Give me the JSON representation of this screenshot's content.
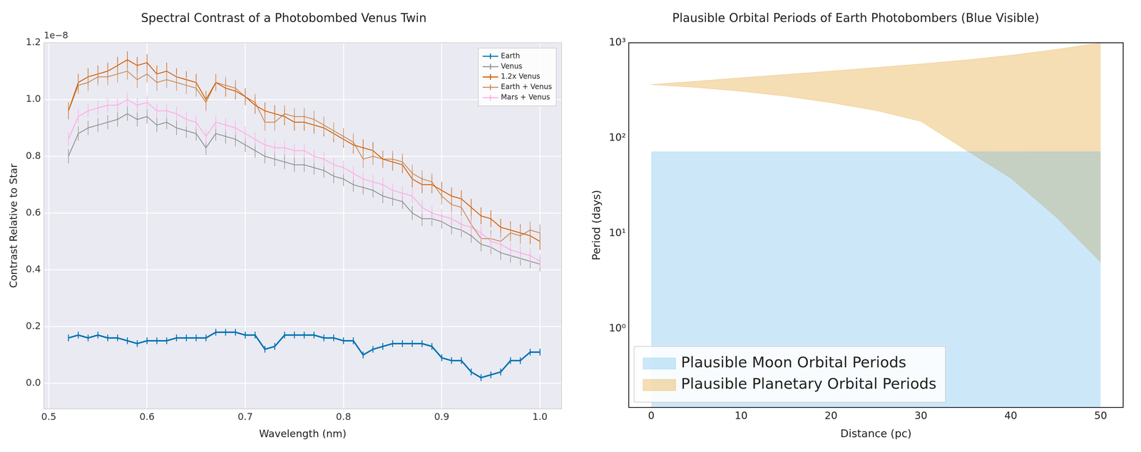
{
  "chart_data": [
    {
      "type": "line",
      "title": "Spectral Contrast of a Photobombed Venus Twin",
      "x_label": "Wavelength (nm)",
      "y_label": "Contrast Relative to Star",
      "annotation": "1e−8",
      "xlim": [
        0.495,
        1.022
      ],
      "xticks": [
        0.5,
        0.6,
        0.7,
        0.8,
        0.9,
        {
          "value": 1,
          "label": "1.0"
        }
      ],
      "ylim": [
        -0.09,
        1.2
      ],
      "yticks": [
        {
          "value": 0,
          "label": "0.0"
        },
        0.2,
        0.4,
        0.6,
        0.8,
        {
          "value": 1,
          "label": "1.0"
        },
        1.2
      ],
      "grid": true,
      "legend": "upper right",
      "x": [
        0.52,
        0.53,
        0.54,
        0.55,
        0.56,
        0.57,
        0.58,
        0.59,
        0.6,
        0.61,
        0.62,
        0.63,
        0.64,
        0.65,
        0.66,
        0.67,
        0.68,
        0.69,
        0.7,
        0.71,
        0.72,
        0.73,
        0.74,
        0.75,
        0.76,
        0.77,
        0.78,
        0.79,
        0.8,
        0.81,
        0.82,
        0.83,
        0.84,
        0.85,
        0.86,
        0.87,
        0.88,
        0.89,
        0.9,
        0.91,
        0.92,
        0.93,
        0.94,
        0.95,
        0.96,
        0.97,
        0.98,
        0.99,
        1.0
      ],
      "series": [
        {
          "name": "Earth",
          "color": "#0173b2",
          "error": 0.012,
          "values": [
            0.16,
            0.17,
            0.16,
            0.17,
            0.16,
            0.16,
            0.15,
            0.14,
            0.15,
            0.15,
            0.15,
            0.16,
            0.16,
            0.16,
            0.16,
            0.18,
            0.18,
            0.18,
            0.17,
            0.17,
            0.12,
            0.13,
            0.17,
            0.17,
            0.17,
            0.17,
            0.16,
            0.16,
            0.15,
            0.15,
            0.1,
            0.12,
            0.13,
            0.14,
            0.14,
            0.14,
            0.14,
            0.13,
            0.09,
            0.08,
            0.08,
            0.04,
            0.02,
            0.03,
            0.04,
            0.08,
            0.08,
            0.11,
            0.11
          ]
        },
        {
          "name": "Venus",
          "color": "#949494",
          "error": 0.025,
          "values": [
            0.8,
            0.88,
            0.9,
            0.91,
            0.92,
            0.93,
            0.95,
            0.93,
            0.94,
            0.91,
            0.92,
            0.9,
            0.89,
            0.88,
            0.83,
            0.88,
            0.87,
            0.86,
            0.84,
            0.82,
            0.8,
            0.79,
            0.78,
            0.77,
            0.77,
            0.76,
            0.75,
            0.73,
            0.72,
            0.7,
            0.69,
            0.68,
            0.66,
            0.65,
            0.64,
            0.6,
            0.58,
            0.58,
            0.57,
            0.55,
            0.54,
            0.52,
            0.49,
            0.48,
            0.46,
            0.45,
            0.44,
            0.43,
            0.42
          ]
        },
        {
          "name": "1.2x Venus",
          "color": "#d55e00",
          "error": 0.03,
          "values": [
            0.96,
            1.06,
            1.08,
            1.09,
            1.1,
            1.12,
            1.14,
            1.12,
            1.13,
            1.09,
            1.1,
            1.08,
            1.07,
            1.06,
            1.0,
            1.06,
            1.04,
            1.03,
            1.01,
            0.98,
            0.96,
            0.95,
            0.94,
            0.92,
            0.92,
            0.91,
            0.9,
            0.88,
            0.86,
            0.84,
            0.83,
            0.82,
            0.79,
            0.78,
            0.77,
            0.72,
            0.7,
            0.7,
            0.68,
            0.66,
            0.65,
            0.62,
            0.59,
            0.58,
            0.55,
            0.54,
            0.53,
            0.52,
            0.5
          ]
        },
        {
          "name": "Earth + Venus",
          "color": "#ca9161",
          "error": 0.03,
          "values": [
            0.96,
            1.05,
            1.06,
            1.08,
            1.08,
            1.09,
            1.1,
            1.07,
            1.09,
            1.06,
            1.07,
            1.06,
            1.05,
            1.04,
            0.99,
            1.06,
            1.05,
            1.04,
            1.01,
            0.99,
            0.92,
            0.92,
            0.95,
            0.94,
            0.94,
            0.93,
            0.91,
            0.89,
            0.87,
            0.85,
            0.79,
            0.8,
            0.79,
            0.79,
            0.78,
            0.74,
            0.72,
            0.71,
            0.66,
            0.63,
            0.62,
            0.56,
            0.51,
            0.51,
            0.5,
            0.53,
            0.52,
            0.54,
            0.53
          ]
        },
        {
          "name": "Mars + Venus",
          "color": "#fbafe4",
          "error": 0.025,
          "values": [
            0.86,
            0.94,
            0.96,
            0.97,
            0.98,
            0.98,
            1.0,
            0.98,
            0.99,
            0.96,
            0.96,
            0.95,
            0.93,
            0.92,
            0.87,
            0.92,
            0.91,
            0.9,
            0.88,
            0.86,
            0.84,
            0.83,
            0.83,
            0.82,
            0.82,
            0.8,
            0.79,
            0.77,
            0.76,
            0.74,
            0.72,
            0.71,
            0.7,
            0.68,
            0.67,
            0.66,
            0.62,
            0.6,
            0.59,
            0.58,
            0.56,
            0.55,
            0.53,
            0.5,
            0.49,
            0.47,
            0.46,
            0.45,
            0.43
          ]
        }
      ]
    },
    {
      "type": "area",
      "title": "Plausible Orbital Periods of Earth Photobombers (Blue Visible)",
      "x_label": "Distance (pc)",
      "y_label": "Period (days)",
      "log": "y",
      "grid": false,
      "legend": "lower left",
      "xlim": [
        -2.5,
        52.5
      ],
      "xticks": [
        0,
        10,
        20,
        30,
        40,
        50
      ],
      "ylim": [
        0.15,
        1000
      ],
      "yticks": [
        {
          "value": 1,
          "label": "10⁰"
        },
        {
          "value": 10,
          "label": "10¹"
        },
        {
          "value": 100,
          "label": "10²"
        },
        {
          "value": 1000,
          "label": "10³"
        }
      ],
      "series": [
        {
          "name": "Plausible Moon Orbital Periods",
          "color": "#56b4e9",
          "x": [
            0,
            50
          ],
          "values": [
            72,
            72
          ]
        },
        {
          "name": "Plausible Planetary Orbital Periods",
          "color": "#de8f05",
          "x": [
            0,
            5,
            10,
            15,
            20,
            25,
            30,
            35,
            40,
            45,
            50
          ],
          "lower": [
            365,
            340,
            310,
            275,
            235,
            195,
            150,
            75,
            38,
            15,
            5
          ],
          "upper": [
            365,
            395,
            430,
            465,
            505,
            550,
            600,
            660,
            740,
            850,
            1000
          ]
        }
      ]
    }
  ]
}
